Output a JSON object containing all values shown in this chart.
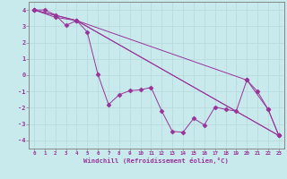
{
  "bg_color": "#c8eaec",
  "line_color": "#993399",
  "grid_color": "#b8d8da",
  "spine_color": "#888888",
  "xlim": [
    -0.5,
    23.5
  ],
  "ylim": [
    -4.5,
    4.5
  ],
  "yticks": [
    -4,
    -3,
    -2,
    -1,
    0,
    1,
    2,
    3,
    4
  ],
  "xticks": [
    0,
    1,
    2,
    3,
    4,
    5,
    6,
    7,
    8,
    9,
    10,
    11,
    12,
    13,
    14,
    15,
    16,
    17,
    18,
    19,
    20,
    21,
    22,
    23
  ],
  "xlabel": "Windchill (Refroidissement éolien,°C)",
  "series1": [
    [
      0,
      4.0
    ],
    [
      1,
      4.0
    ],
    [
      2,
      3.7
    ],
    [
      3,
      3.05
    ],
    [
      4,
      3.35
    ],
    [
      5,
      2.65
    ],
    [
      6,
      0.05
    ],
    [
      7,
      -1.8
    ],
    [
      8,
      -1.2
    ],
    [
      9,
      -0.95
    ],
    [
      10,
      -0.9
    ],
    [
      11,
      -0.75
    ],
    [
      12,
      -2.2
    ],
    [
      13,
      -3.45
    ],
    [
      14,
      -3.5
    ],
    [
      15,
      -2.65
    ],
    [
      16,
      -3.05
    ],
    [
      17,
      -1.95
    ],
    [
      18,
      -2.1
    ],
    [
      19,
      -2.2
    ],
    [
      20,
      -0.3
    ],
    [
      21,
      -1.0
    ],
    [
      22,
      -2.1
    ],
    [
      23,
      -3.7
    ]
  ],
  "series2": [
    [
      0,
      4.0
    ],
    [
      2,
      3.55
    ],
    [
      4,
      3.35
    ],
    [
      23,
      -3.7
    ]
  ],
  "series3": [
    [
      0,
      4.0
    ],
    [
      4,
      3.35
    ],
    [
      23,
      -3.7
    ]
  ],
  "series4": [
    [
      0,
      4.0
    ],
    [
      4,
      3.35
    ],
    [
      20,
      -0.3
    ],
    [
      22,
      -2.1
    ],
    [
      23,
      -3.7
    ]
  ]
}
